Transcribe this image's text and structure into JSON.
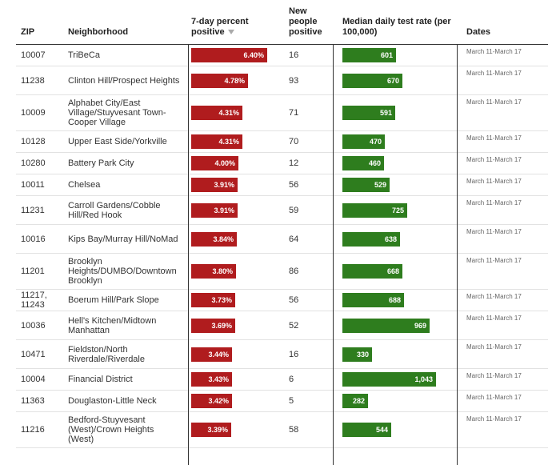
{
  "headers": {
    "zip": "ZIP",
    "neighborhood": "Neighborhood",
    "pct_line1": "7-day percent",
    "pct_line2": "positive",
    "new_line1": "New",
    "new_line2": "people",
    "new_line3": "positive",
    "rate_line1": "Median daily test rate (per",
    "rate_line2": "100,000)",
    "dates": "Dates"
  },
  "scale": {
    "pct_max": 6.4,
    "rate_max": 1043
  },
  "colors": {
    "red_bar": "#b01c1e",
    "green_bar": "#2e7d1e"
  },
  "rows": [
    {
      "zip": "10007",
      "neighborhood": "TriBeCa",
      "pct": 6.4,
      "pct_label": "6.40%",
      "new": "16",
      "rate": 601,
      "rate_label": "601",
      "dates": "March 11-March 17"
    },
    {
      "zip": "11238",
      "neighborhood": "Clinton Hill/Prospect Heights",
      "pct": 4.78,
      "pct_label": "4.78%",
      "new": "93",
      "rate": 670,
      "rate_label": "670",
      "dates": "March 11-March 17"
    },
    {
      "zip": "10009",
      "neighborhood": "Alphabet City/East Village/Stuyvesant Town-Cooper Village",
      "pct": 4.31,
      "pct_label": "4.31%",
      "new": "71",
      "rate": 591,
      "rate_label": "591",
      "dates": "March 11-March 17"
    },
    {
      "zip": "10128",
      "neighborhood": "Upper East Side/Yorkville",
      "pct": 4.31,
      "pct_label": "4.31%",
      "new": "70",
      "rate": 470,
      "rate_label": "470",
      "dates": "March 11-March 17"
    },
    {
      "zip": "10280",
      "neighborhood": "Battery Park City",
      "pct": 4.0,
      "pct_label": "4.00%",
      "new": "12",
      "rate": 460,
      "rate_label": "460",
      "dates": "March 11-March 17"
    },
    {
      "zip": "10011",
      "neighborhood": "Chelsea",
      "pct": 3.91,
      "pct_label": "3.91%",
      "new": "56",
      "rate": 529,
      "rate_label": "529",
      "dates": "March 11-March 17"
    },
    {
      "zip": "11231",
      "neighborhood": "Carroll Gardens/Cobble Hill/Red Hook",
      "pct": 3.91,
      "pct_label": "3.91%",
      "new": "59",
      "rate": 725,
      "rate_label": "725",
      "dates": "March 11-March 17"
    },
    {
      "zip": "10016",
      "neighborhood": "Kips Bay/Murray Hill/NoMad",
      "pct": 3.84,
      "pct_label": "3.84%",
      "new": "64",
      "rate": 638,
      "rate_label": "638",
      "dates": "March 11-March 17"
    },
    {
      "zip": "11201",
      "neighborhood": "Brooklyn Heights/DUMBO/Downtown Brooklyn",
      "pct": 3.8,
      "pct_label": "3.80%",
      "new": "86",
      "rate": 668,
      "rate_label": "668",
      "dates": "March 11-March 17"
    },
    {
      "zip": "11217, 11243",
      "neighborhood": "Boerum Hill/Park Slope",
      "pct": 3.73,
      "pct_label": "3.73%",
      "new": "56",
      "rate": 688,
      "rate_label": "688",
      "dates": "March 11-March 17"
    },
    {
      "zip": "10036",
      "neighborhood": "Hell's Kitchen/Midtown Manhattan",
      "pct": 3.69,
      "pct_label": "3.69%",
      "new": "52",
      "rate": 969,
      "rate_label": "969",
      "dates": "March 11-March 17"
    },
    {
      "zip": "10471",
      "neighborhood": "Fieldston/North Riverdale/Riverdale",
      "pct": 3.44,
      "pct_label": "3.44%",
      "new": "16",
      "rate": 330,
      "rate_label": "330",
      "dates": "March 11-March 17"
    },
    {
      "zip": "10004",
      "neighborhood": "Financial District",
      "pct": 3.43,
      "pct_label": "3.43%",
      "new": "6",
      "rate": 1043,
      "rate_label": "1,043",
      "dates": "March 11-March 17"
    },
    {
      "zip": "11363",
      "neighborhood": "Douglaston-Little Neck",
      "pct": 3.42,
      "pct_label": "3.42%",
      "new": "5",
      "rate": 282,
      "rate_label": "282",
      "dates": "March 11-March 17"
    },
    {
      "zip": "11216",
      "neighborhood": "Bedford-Stuyvesant (West)/Crown Heights (West)",
      "pct": 3.39,
      "pct_label": "3.39%",
      "new": "58",
      "rate": 544,
      "rate_label": "544",
      "dates": "March 11-March 17"
    }
  ]
}
